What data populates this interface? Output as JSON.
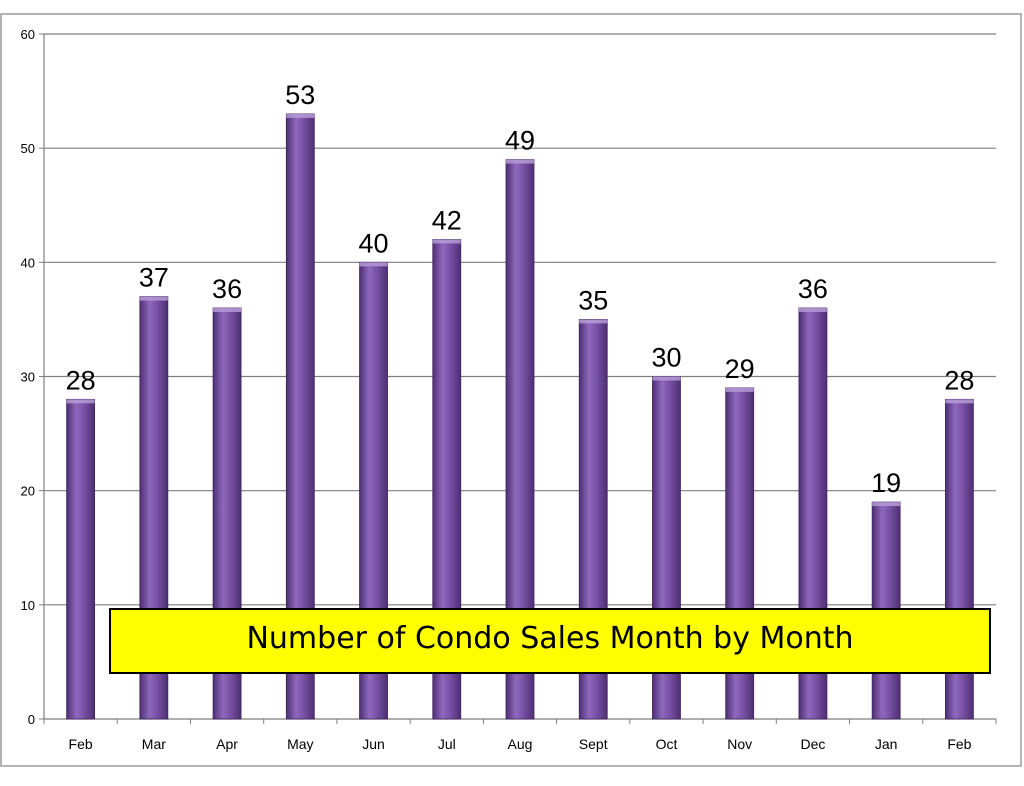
{
  "chart_data": {
    "type": "bar",
    "title": "Number of Condo Sales Month by Month",
    "categories": [
      "Feb",
      "Mar",
      "Apr",
      "May",
      "Jun",
      "Jul",
      "Aug",
      "Sept",
      "Oct",
      "Nov",
      "Dec",
      "Jan",
      "Feb"
    ],
    "values": [
      28,
      37,
      36,
      53,
      40,
      42,
      49,
      35,
      30,
      29,
      36,
      19,
      28
    ],
    "data_labels": [
      "28",
      "37",
      "36",
      "53",
      "40",
      "42",
      "49",
      "35",
      "30",
      "29",
      "36",
      "19",
      "28"
    ],
    "ylim": [
      0,
      60
    ],
    "yticks": [
      0,
      10,
      20,
      30,
      40,
      50,
      60
    ],
    "ytick_labels": [
      "0",
      "10",
      "20",
      "30",
      "40",
      "50",
      "60"
    ],
    "xlabel": "",
    "ylabel": "",
    "grid": true,
    "legend": "none",
    "colors": {
      "bar": "#7a52a6",
      "bar_light": "#9c78c6",
      "bar_dark": "#4e2f73",
      "title_box": "#ffff00",
      "gridline": "#7f7f7f"
    }
  }
}
